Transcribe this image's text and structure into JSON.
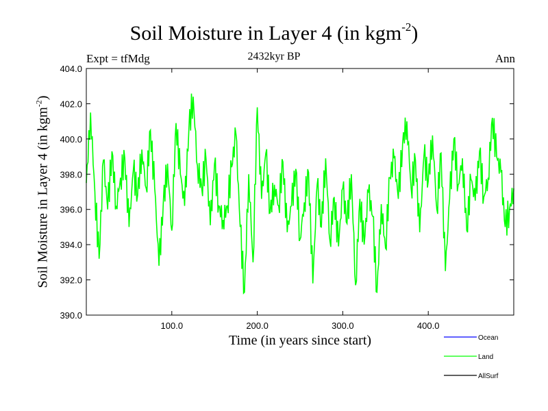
{
  "chart_data": {
    "type": "line",
    "title": "Soil Moisture in Layer 4 (in kgm",
    "title_exponent": "-2",
    "title_close": ")",
    "subtitle": "2432kyr BP",
    "expt_label": "Expt = tfMdg",
    "period_label": "Ann",
    "xlabel": "Time (in years since start)",
    "ylabel": "Soil Moisture in Layer 4 (in kgm",
    "ylabel_exponent": "-2",
    "ylabel_close": ")",
    "xlim": [
      0,
      500
    ],
    "ylim": [
      390,
      404
    ],
    "xticks": [
      100,
      200,
      300,
      400
    ],
    "xtick_labels": [
      "100.0",
      "200.0",
      "300.0",
      "400.0"
    ],
    "yticks": [
      390,
      392,
      394,
      396,
      398,
      400,
      402,
      404
    ],
    "ytick_labels": [
      "390.0",
      "392.0",
      "394.0",
      "396.0",
      "398.0",
      "400.0",
      "402.0",
      "404.0"
    ],
    "legend": [
      {
        "name": "Ocean",
        "color": "#0000ff"
      },
      {
        "name": "Land",
        "color": "#00ff00"
      },
      {
        "name": "AllSurf",
        "color": "#000000"
      }
    ],
    "series": [
      {
        "name": "Land",
        "color": "#00ff00",
        "x": [
          0,
          5,
          10,
          15,
          20,
          25,
          30,
          35,
          40,
          45,
          50,
          55,
          60,
          65,
          70,
          75,
          80,
          85,
          90,
          95,
          100,
          105,
          110,
          115,
          120,
          125,
          130,
          135,
          140,
          145,
          150,
          155,
          160,
          165,
          170,
          175,
          180,
          185,
          190,
          195,
          200,
          205,
          210,
          215,
          220,
          225,
          230,
          235,
          240,
          245,
          250,
          255,
          260,
          265,
          270,
          275,
          280,
          285,
          290,
          295,
          300,
          305,
          310,
          315,
          320,
          325,
          330,
          335,
          340,
          345,
          350,
          355,
          360,
          365,
          370,
          375,
          380,
          385,
          390,
          395,
          400,
          405,
          410,
          415,
          420,
          425,
          430,
          435,
          440,
          445,
          450,
          455,
          460,
          465,
          470,
          475,
          480,
          485,
          490,
          495,
          500
        ],
        "values": [
          397.5,
          401.5,
          397.0,
          393.2,
          398.8,
          396.0,
          399.3,
          396.2,
          397.8,
          398.9,
          395.0,
          398.2,
          396.8,
          399.4,
          397.2,
          400.5,
          397.2,
          392.8,
          396.3,
          398.6,
          394.8,
          400.9,
          398.0,
          396.2,
          400.6,
          402.4,
          398.5,
          397.2,
          398.9,
          395.1,
          398.6,
          396.2,
          395.4,
          396.2,
          398.4,
          400.3,
          395.0,
          391.3,
          398.0,
          393.0,
          401.8,
          396.6,
          399.2,
          395.8,
          397.4,
          396.2,
          398.7,
          394.7,
          396.2,
          398.3,
          394.3,
          396.4,
          398.1,
          391.8,
          397.4,
          395.0,
          398.9,
          394.2,
          396.7,
          393.9,
          397.2,
          395.2,
          398.0,
          391.7,
          396.6,
          394.0,
          397.0,
          395.6,
          391.3,
          396.3,
          393.8,
          397.8,
          398.9,
          396.6,
          399.8,
          401.0,
          397.2,
          398.8,
          394.7,
          399.1,
          397.6,
          400.2,
          396.0,
          399.2,
          392.5,
          396.6,
          400.0,
          397.4,
          398.9,
          394.8,
          397.7,
          396.5,
          399.3,
          396.7,
          397.8,
          401.2,
          399.0,
          398.1,
          395.0,
          396.0,
          397.2
        ]
      }
    ]
  }
}
